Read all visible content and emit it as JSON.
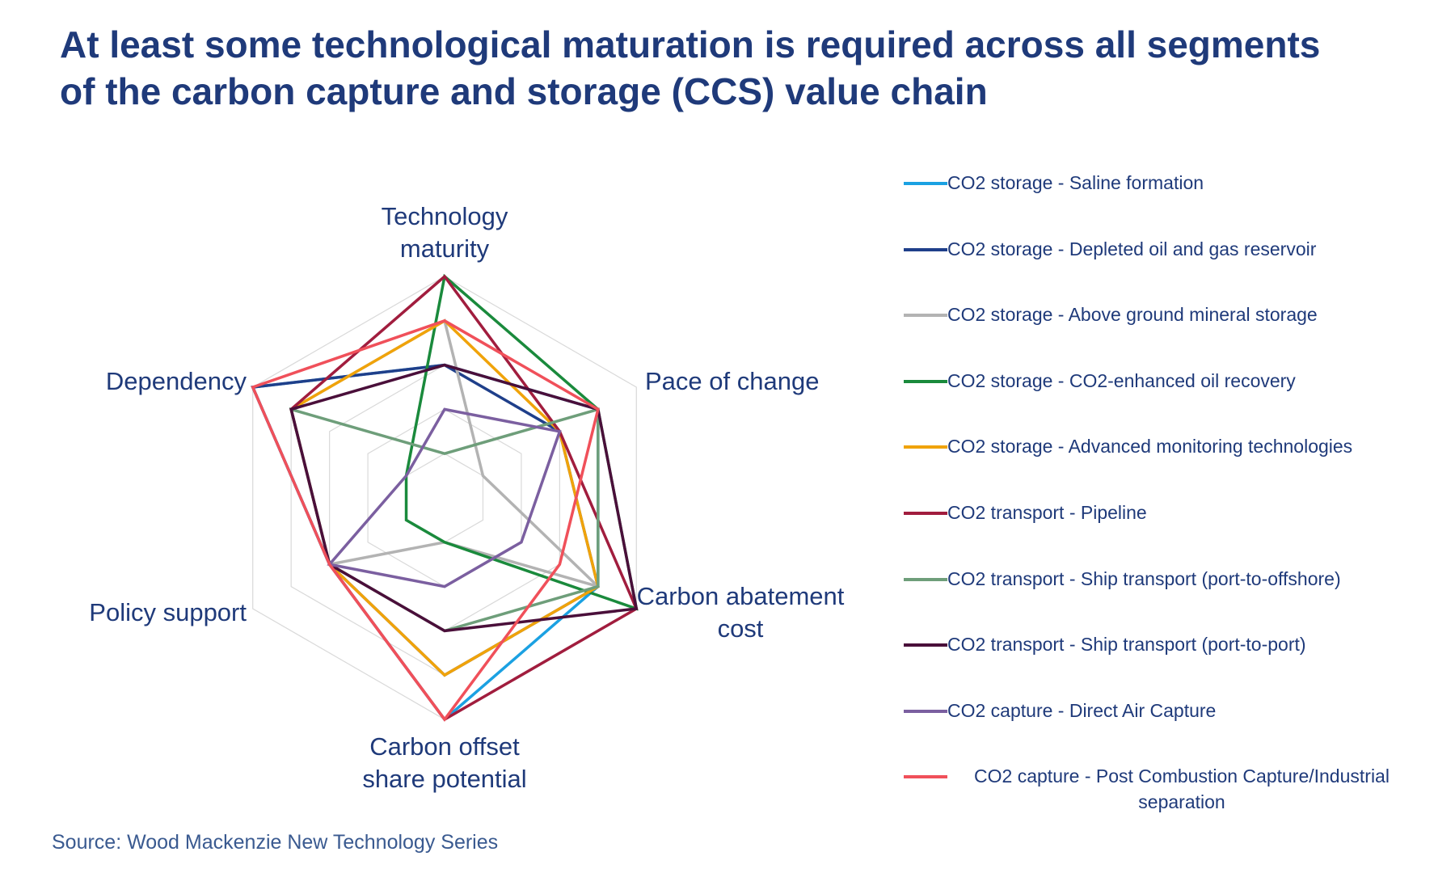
{
  "chart_data": {
    "type": "radar",
    "title": "At least some technological maturation is required across all segments of the carbon capture and storage (CCS) value chain",
    "source": "Source: Wood Mackenzie New Technology Series",
    "categories": [
      "Technology maturity",
      "Pace of change",
      "Carbon abatement cost",
      "Carbon offset share potential",
      "Policy support",
      "Dependency"
    ],
    "rlim": [
      0,
      5
    ],
    "rticks": [
      1,
      2,
      3,
      4,
      5
    ],
    "grid": true,
    "legend": "right",
    "series": [
      {
        "name": "CO2 storage - Saline formation",
        "color": "#1ba1e2",
        "values": [
          3,
          4,
          4,
          5,
          3,
          5
        ]
      },
      {
        "name": "CO2 storage - Depleted oil and gas reservoir",
        "color": "#1f3f8a",
        "values": [
          3,
          3,
          4,
          4,
          3,
          5
        ]
      },
      {
        "name": "CO2 storage - Above ground mineral storage",
        "color": "#b3b3b3",
        "values": [
          4,
          1,
          4,
          1,
          3,
          4
        ]
      },
      {
        "name": "CO2 storage - CO2-enhanced oil recovery",
        "color": "#1a8a3c",
        "values": [
          5,
          4,
          5,
          1,
          1,
          1
        ]
      },
      {
        "name": "CO2 storage - Advanced monitoring technologies",
        "color": "#f0a30a",
        "values": [
          4,
          3,
          4,
          4,
          3,
          4
        ]
      },
      {
        "name": "CO2 transport - Pipeline",
        "color": "#a11d3e",
        "values": [
          5,
          3,
          5,
          5,
          3,
          4
        ]
      },
      {
        "name": "CO2 transport - Ship transport (port-to-offshore)",
        "color": "#6e9e7a",
        "values": [
          1,
          4,
          4,
          3,
          3,
          4
        ]
      },
      {
        "name": "CO2 transport - Ship transport (port-to-port)",
        "color": "#4a0f3a",
        "values": [
          3,
          4,
          5,
          3,
          3,
          4
        ]
      },
      {
        "name": "CO2 capture - Direct Air Capture",
        "color": "#7b5fa0",
        "values": [
          2,
          3,
          2,
          2,
          3,
          1
        ]
      },
      {
        "name": "CO2 capture - Post Combustion Capture/Industrial separation",
        "color": "#f0505a",
        "values": [
          4,
          4,
          3,
          5,
          3,
          5
        ]
      }
    ]
  }
}
